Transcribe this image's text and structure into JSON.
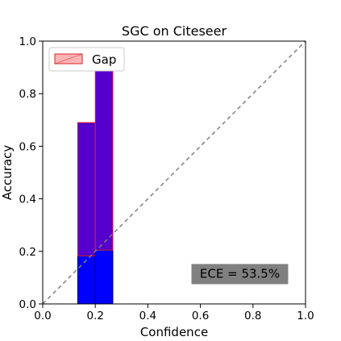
{
  "chart_data": {
    "type": "bar",
    "title": "SGC on Citeseer",
    "xlabel": "Confidence",
    "ylabel": "Accuracy",
    "xlim": [
      0.0,
      1.0
    ],
    "ylim": [
      0.0,
      1.0
    ],
    "xticks": [
      "0.0",
      "0.2",
      "0.4",
      "0.6",
      "0.8",
      "1.0"
    ],
    "yticks": [
      "0.0",
      "0.2",
      "0.4",
      "0.6",
      "0.8",
      "1.0"
    ],
    "grid": false,
    "legend": {
      "position": "top-left",
      "entries": [
        "Gap"
      ]
    },
    "diagonal": {
      "style": "dashed",
      "color": "#808080",
      "from": [
        0,
        0
      ],
      "to": [
        1,
        1
      ]
    },
    "bins": [
      {
        "x_start": 0.133,
        "x_end": 0.2,
        "accuracy": 0.183,
        "gap_top": 0.69
      },
      {
        "x_start": 0.2,
        "x_end": 0.267,
        "accuracy": 0.205,
        "gap_top": 0.935
      }
    ],
    "colors": {
      "accuracy_bar": "#0000ff",
      "gap_fill": "#ff7f7f",
      "gap_edge": "#d62728",
      "overlap": "#5500cc",
      "ece_box": "#808080"
    },
    "annotation": {
      "text": "ECE = 53.5%",
      "x": 0.75,
      "y": 0.115
    }
  }
}
